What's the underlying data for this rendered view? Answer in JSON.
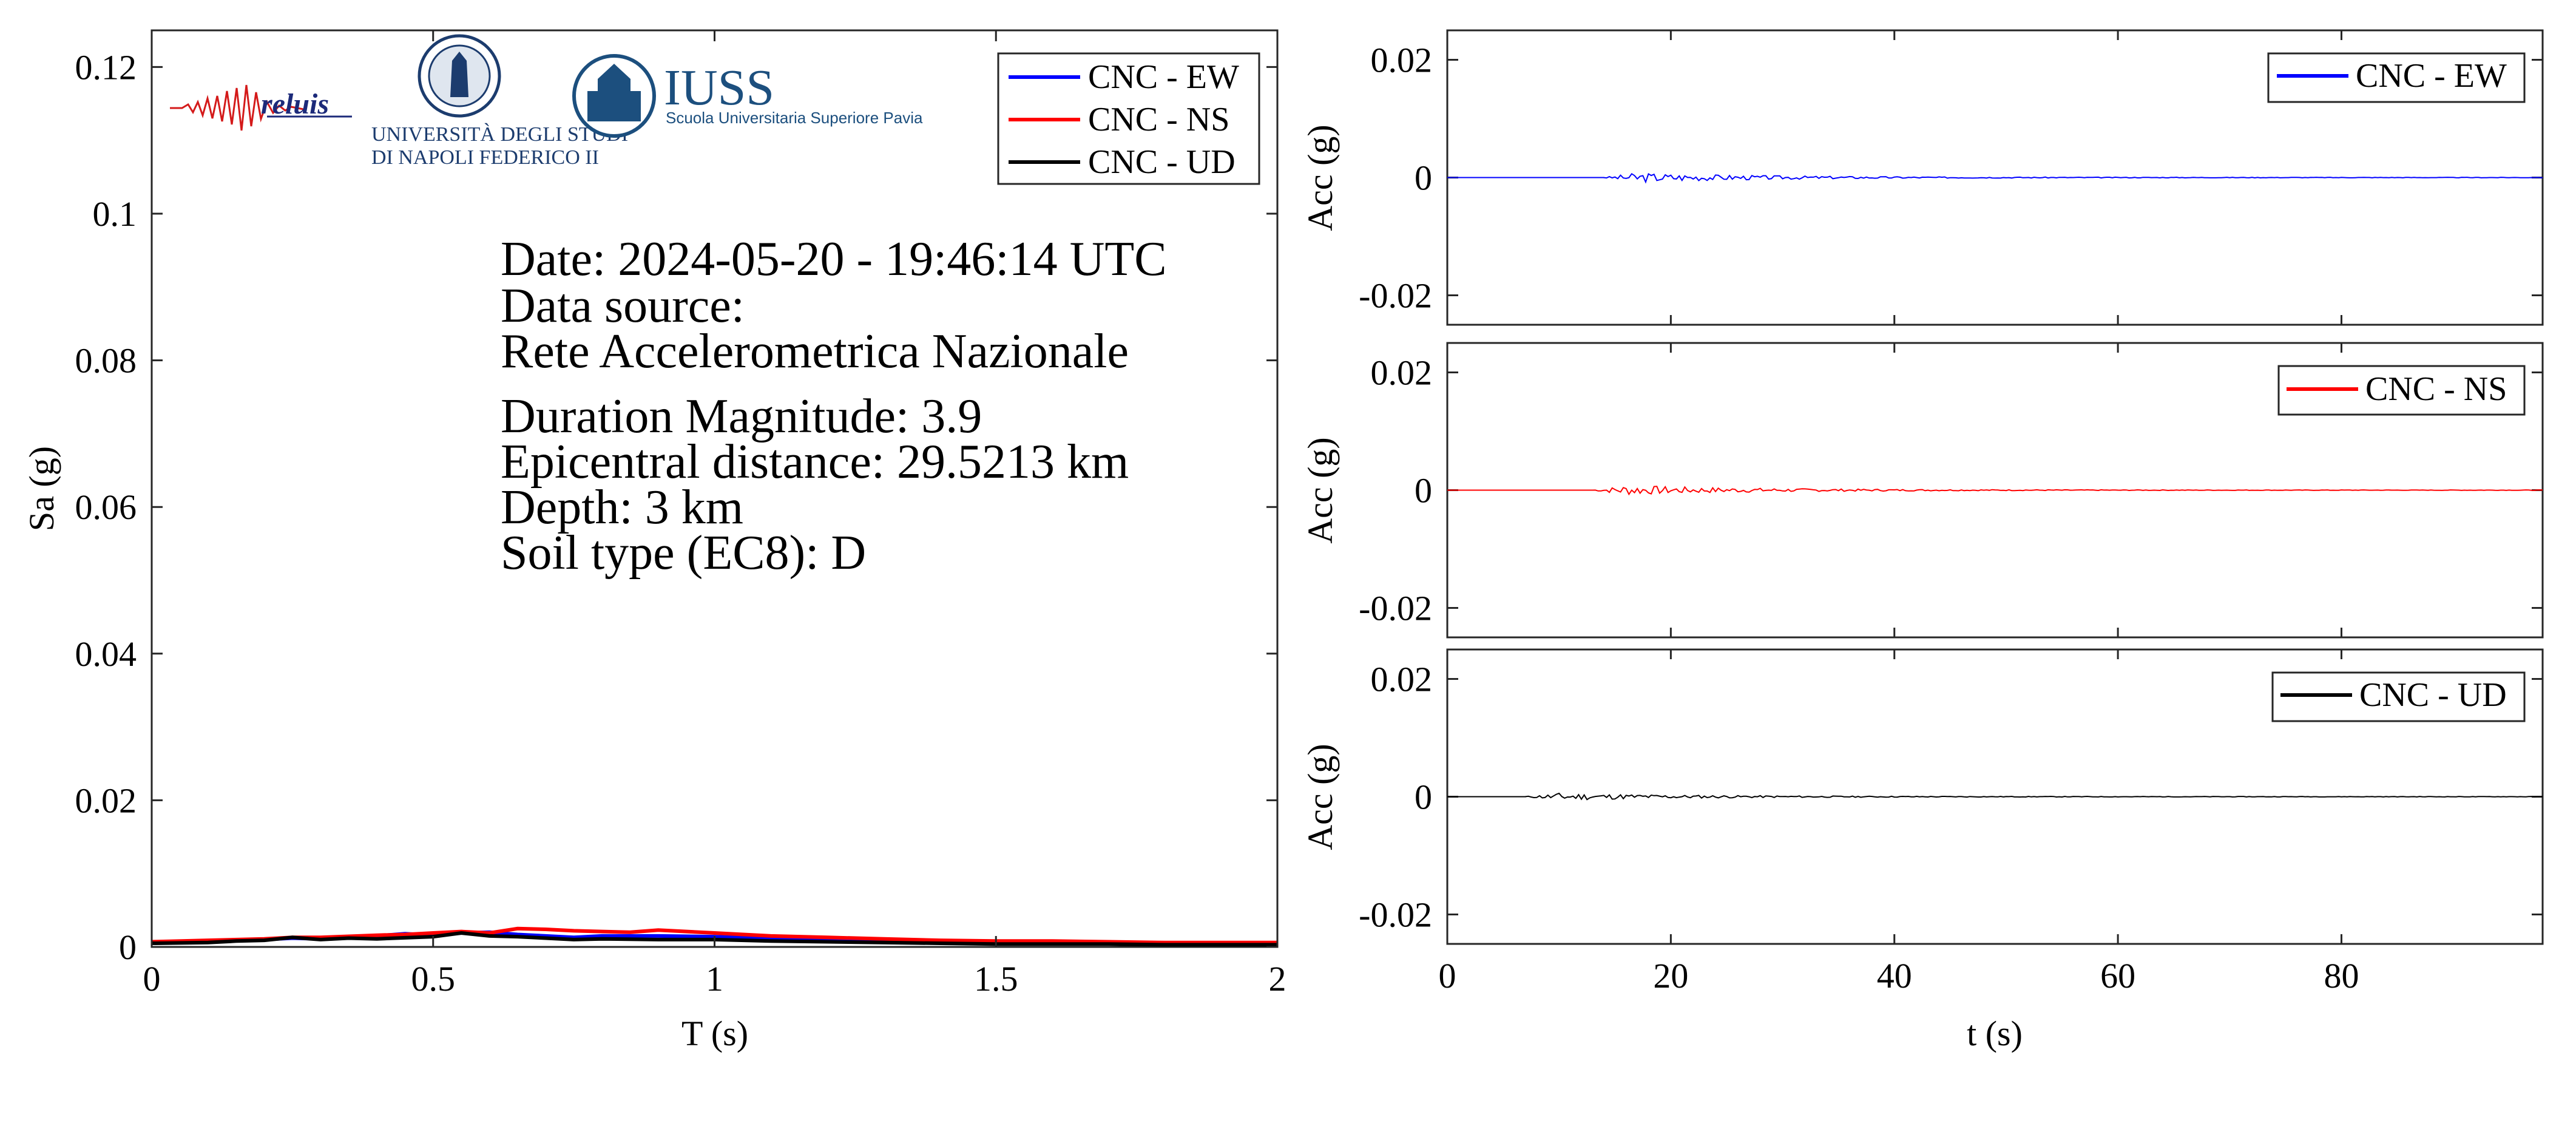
{
  "logos": {
    "reluis": {
      "text": "reluis"
    },
    "unina": {
      "line1": "UNIVERSITÀ DEGLI STUDI",
      "line2": "DI NAPOLI FEDERICO II"
    },
    "iuss": {
      "title": "IUSS",
      "subtitle": "Scuola Universitaria Superiore Pavia"
    }
  },
  "info_text": {
    "date": "Date: 2024-05-20 - 19:46:14 UTC",
    "source_label": "Data source:",
    "source_value": "Rete Accelerometrica Nazionale",
    "magnitude": "Duration Magnitude: 3.9",
    "distance": "Epicentral distance: 29.5213 km",
    "depth": "Depth: 3 km",
    "soil": "Soil type (EC8): D"
  },
  "colors": {
    "EW": "#0000ff",
    "NS": "#ff0000",
    "UD": "#000000",
    "axis": "#262626"
  },
  "chart_data": [
    {
      "type": "line",
      "xlabel": "T (s)",
      "ylabel": "Sa (g)",
      "xlim": [
        0,
        2
      ],
      "ylim": [
        0,
        0.125
      ],
      "xticks": [
        0,
        0.5,
        1,
        1.5,
        2
      ],
      "xtick_labels": [
        "0",
        "0.5",
        "1",
        "1.5",
        "2"
      ],
      "yticks": [
        0,
        0.02,
        0.04,
        0.06,
        0.08,
        0.1,
        0.12
      ],
      "ytick_labels": [
        "0",
        "0.02",
        "0.04",
        "0.06",
        "0.08",
        "0.1",
        "0.12"
      ],
      "grid": false,
      "legend": "top-right",
      "series": [
        {
          "name": "CNC - EW",
          "color": "#0000ff",
          "x": [
            0,
            0.1,
            0.2,
            0.25,
            0.3,
            0.4,
            0.45,
            0.5,
            0.55,
            0.6,
            0.65,
            0.7,
            0.75,
            0.8,
            0.9,
            1.0,
            1.1,
            1.2,
            1.3,
            1.4,
            1.5,
            1.6,
            1.7,
            1.8,
            1.9,
            2.0
          ],
          "y": [
            0.0006,
            0.0008,
            0.001,
            0.0012,
            0.0011,
            0.0015,
            0.0018,
            0.0016,
            0.0019,
            0.002,
            0.0017,
            0.0015,
            0.0013,
            0.0015,
            0.0015,
            0.0014,
            0.0012,
            0.001,
            0.0008,
            0.0006,
            0.0006,
            0.0006,
            0.0005,
            0.0005,
            0.0005,
            0.0005
          ]
        },
        {
          "name": "CNC - NS",
          "color": "#ff0000",
          "x": [
            0,
            0.1,
            0.2,
            0.25,
            0.3,
            0.4,
            0.45,
            0.5,
            0.55,
            0.6,
            0.65,
            0.7,
            0.75,
            0.8,
            0.85,
            0.9,
            1.0,
            1.1,
            1.2,
            1.3,
            1.4,
            1.5,
            1.6,
            1.7,
            1.8,
            1.9,
            2.0
          ],
          "y": [
            0.0007,
            0.0009,
            0.0011,
            0.0013,
            0.0013,
            0.0016,
            0.0017,
            0.0019,
            0.0021,
            0.0019,
            0.0025,
            0.0024,
            0.0022,
            0.0021,
            0.002,
            0.0023,
            0.0019,
            0.0015,
            0.0013,
            0.0011,
            0.0009,
            0.0008,
            0.0008,
            0.0007,
            0.0006,
            0.0006,
            0.0006
          ]
        },
        {
          "name": "CNC - UD",
          "color": "#000000",
          "x": [
            0,
            0.1,
            0.15,
            0.2,
            0.25,
            0.3,
            0.35,
            0.4,
            0.5,
            0.55,
            0.6,
            0.65,
            0.7,
            0.75,
            0.8,
            0.9,
            1.0,
            1.1,
            1.2,
            1.3,
            1.4,
            1.5,
            1.6,
            1.7,
            1.8,
            1.9,
            2.0
          ],
          "y": [
            0.0005,
            0.0006,
            0.0008,
            0.0009,
            0.0013,
            0.001,
            0.0012,
            0.0011,
            0.0014,
            0.0019,
            0.0015,
            0.0014,
            0.0012,
            0.001,
            0.0011,
            0.001,
            0.001,
            0.0008,
            0.0007,
            0.0006,
            0.0005,
            0.0004,
            0.0004,
            0.0004,
            0.0003,
            0.0003,
            0.0003
          ]
        }
      ]
    },
    {
      "type": "line",
      "xlabel": "",
      "ylabel": "Acc (g)",
      "xlim": [
        0,
        98
      ],
      "ylim": [
        -0.025,
        0.025
      ],
      "yticks": [
        -0.02,
        0,
        0.02
      ],
      "ytick_labels": [
        "-0.02",
        "0",
        "0.02"
      ],
      "xticks": [
        0,
        20,
        40,
        60,
        80
      ],
      "grid": false,
      "legend": "top-right",
      "series": [
        {
          "name": "CNC - EW",
          "color": "#0000ff",
          "onset": 14,
          "peak": 0.0008,
          "end": 98
        }
      ]
    },
    {
      "type": "line",
      "xlabel": "",
      "ylabel": "Acc (g)",
      "xlim": [
        0,
        98
      ],
      "ylim": [
        -0.025,
        0.025
      ],
      "yticks": [
        -0.02,
        0,
        0.02
      ],
      "ytick_labels": [
        "-0.02",
        "0",
        "0.02"
      ],
      "xticks": [
        0,
        20,
        40,
        60,
        80
      ],
      "grid": false,
      "legend": "top-right",
      "series": [
        {
          "name": "CNC - NS",
          "color": "#ff0000",
          "onset": 13,
          "peak": 0.0008,
          "end": 98
        }
      ]
    },
    {
      "type": "line",
      "xlabel": "t (s)",
      "ylabel": "Acc (g)",
      "xlim": [
        0,
        98
      ],
      "ylim": [
        -0.025,
        0.025
      ],
      "yticks": [
        -0.02,
        0,
        0.02
      ],
      "ytick_labels": [
        "-0.02",
        "0",
        "0.02"
      ],
      "xticks": [
        0,
        20,
        40,
        60,
        80
      ],
      "xtick_labels": [
        "0",
        "20",
        "40",
        "60",
        "80"
      ],
      "grid": false,
      "legend": "top-right",
      "series": [
        {
          "name": "CNC - UD",
          "color": "#000000",
          "onset": 7,
          "peak": 0.0006,
          "end": 98
        }
      ]
    }
  ]
}
